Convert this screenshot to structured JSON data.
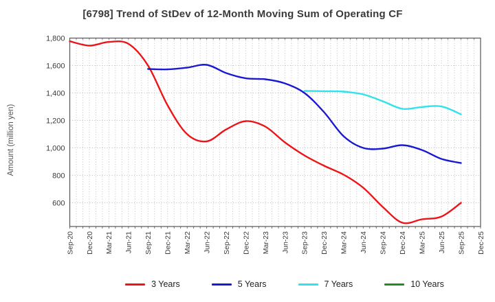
{
  "header": {
    "title": "[6798]  Trend of StDev of 12-Month Moving Sum of Operating CF"
  },
  "axes": {
    "y_label": "Amount (million yen)",
    "y_ticks": [
      {
        "label": "1,800",
        "value": 1800
      },
      {
        "label": "1,600",
        "value": 1600
      },
      {
        "label": "1,400",
        "value": 1400
      },
      {
        "label": "1,200",
        "value": 1200
      },
      {
        "label": "1,000",
        "value": 1000
      },
      {
        "label": "800",
        "value": 800
      },
      {
        "label": "600",
        "value": 600
      }
    ]
  },
  "legend": {
    "items": [
      {
        "label": "3 Years",
        "color": "#ed1418"
      },
      {
        "label": "5 Years",
        "color": "#1919d2"
      },
      {
        "label": "7 Years",
        "color": "#2ee3ea"
      },
      {
        "label": "10 Years",
        "color": "#228b22"
      }
    ]
  },
  "chart_data": {
    "type": "line",
    "title": "[6798]  Trend of StDev of 12-Month Moving Sum of Operating CF",
    "xlabel": "",
    "ylabel": "Amount (million yen)",
    "ylim": [
      427.5,
      1800
    ],
    "y_gridlines": [
      600,
      800,
      1000,
      1200,
      1400,
      1600
    ],
    "grid": true,
    "legend_position": "bottom",
    "categories": [
      "Sep-20",
      "Dec-20",
      "Mar-21",
      "Jun-21",
      "Sep-21",
      "Dec-21",
      "Mar-22",
      "Jun-22",
      "Sep-22",
      "Dec-22",
      "Mar-23",
      "Jun-23",
      "Sep-23",
      "Dec-23",
      "Mar-24",
      "Jun-24",
      "Sep-24",
      "Dec-24",
      "Mar-25",
      "Jun-25",
      "Sep-25",
      "Dec-25"
    ],
    "months_per_category": 3,
    "series": [
      {
        "name": "3 Years",
        "color": "#ed1418",
        "values": [
          1777,
          1745,
          1772,
          1758,
          1600,
          1310,
          1100,
          1048,
          1135,
          1195,
          1155,
          1040,
          945,
          870,
          805,
          710,
          570,
          455,
          480,
          500,
          600,
          null
        ]
      },
      {
        "name": "5 Years",
        "color": "#1919d2",
        "values": [
          null,
          null,
          null,
          null,
          1575,
          1572,
          1585,
          1605,
          1545,
          1507,
          1500,
          1470,
          1400,
          1260,
          1085,
          1000,
          995,
          1020,
          985,
          920,
          890,
          null
        ]
      },
      {
        "name": "7 Years",
        "color": "#2ee3ea",
        "values": [
          null,
          null,
          null,
          null,
          null,
          null,
          null,
          null,
          null,
          null,
          null,
          null,
          1415,
          1413,
          1410,
          1390,
          1340,
          1285,
          1298,
          1302,
          1245,
          null
        ]
      },
      {
        "name": "10 Years",
        "color": "#228b22",
        "values": [
          null,
          null,
          null,
          null,
          null,
          null,
          null,
          null,
          null,
          null,
          null,
          null,
          null,
          null,
          null,
          null,
          null,
          null,
          null,
          null,
          null,
          null
        ]
      }
    ]
  }
}
